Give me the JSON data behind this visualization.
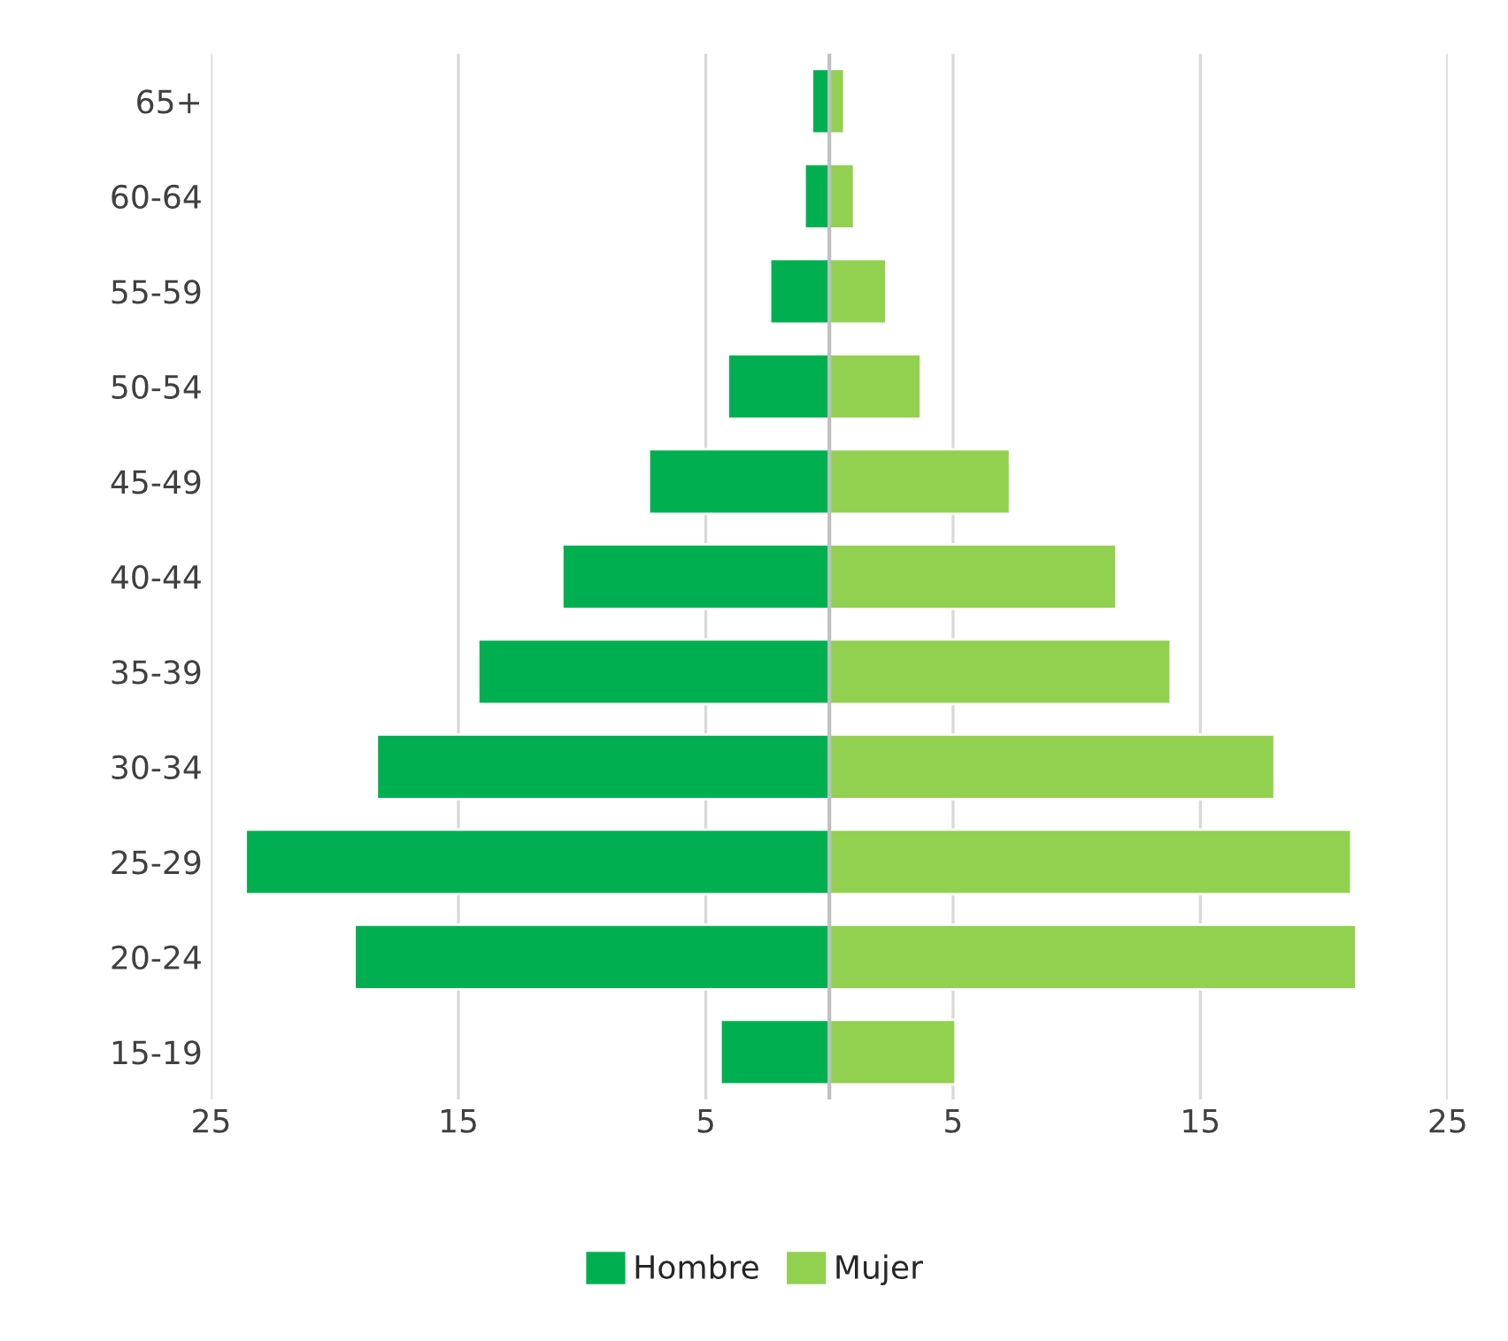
{
  "chart_data": {
    "type": "bar",
    "orientation": "horizontal",
    "categories": [
      "65+",
      "60-64",
      "55-59",
      "50-54",
      "45-49",
      "40-44",
      "35-39",
      "30-34",
      "25-29",
      "20-24",
      "15-19"
    ],
    "series": [
      {
        "name": "Hombre",
        "color": "#00b050",
        "values": [
          -0.7,
          -1.0,
          -2.4,
          -4.1,
          -7.3,
          -10.8,
          -14.2,
          -18.3,
          -23.6,
          -19.2,
          -4.4
        ]
      },
      {
        "name": "Mujer",
        "color": "#92d050",
        "values": [
          0.6,
          1.0,
          2.3,
          3.7,
          7.3,
          11.6,
          13.8,
          18.0,
          21.1,
          21.3,
          5.1
        ]
      }
    ],
    "xlim": [
      -25,
      25
    ],
    "xticks": [
      {
        "value": -25,
        "label": "25"
      },
      {
        "value": -15,
        "label": "15"
      },
      {
        "value": -5,
        "label": "5"
      },
      5,
      15,
      25
    ],
    "grid": "x",
    "legend": "bottom",
    "stacked": true
  }
}
